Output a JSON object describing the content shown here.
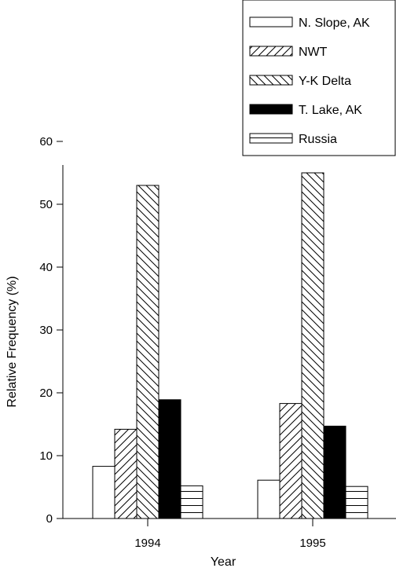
{
  "chart_data": {
    "type": "bar",
    "title": "",
    "xlabel": "Year",
    "ylabel": "Relative Frequency (%)",
    "categories": [
      "1994",
      "1995"
    ],
    "ylim": [
      0,
      60
    ],
    "yticks": [
      0,
      10,
      20,
      30,
      40,
      50,
      60
    ],
    "grid": false,
    "legend_position": "top-right",
    "series": [
      {
        "name": "N. Slope, AK",
        "pattern": "none",
        "color": "#ffffff",
        "values": [
          8.3,
          6.1
        ]
      },
      {
        "name": "NWT",
        "pattern": "diagonal-up",
        "color": "#ffffff",
        "values": [
          14.2,
          18.3
        ]
      },
      {
        "name": "Y-K Delta",
        "pattern": "diagonal-down",
        "color": "#ffffff",
        "values": [
          53.0,
          55.0
        ]
      },
      {
        "name": "T. Lake, AK",
        "pattern": "solid",
        "color": "#000000",
        "values": [
          18.9,
          14.7
        ]
      },
      {
        "name": "Russia",
        "pattern": "horizontal",
        "color": "#ffffff",
        "values": [
          5.2,
          5.1
        ]
      }
    ]
  }
}
